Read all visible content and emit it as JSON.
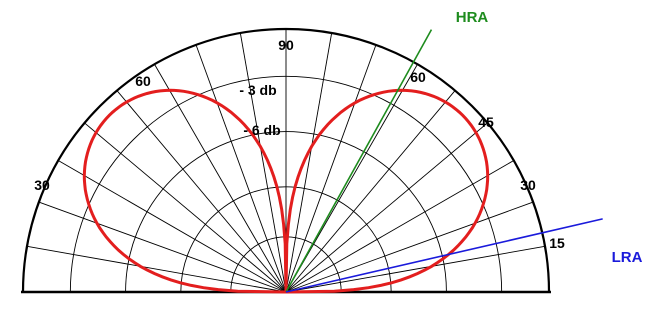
{
  "angle_labels": {
    "a90": "90",
    "left_60": "60",
    "left_30": "30",
    "right_60": "60",
    "right_45": "45",
    "right_30": "30",
    "right_15": "15"
  },
  "ring_labels": {
    "minus3": "- 3 db",
    "minus6": "- 6 db"
  },
  "rays": {
    "hra": {
      "label": "HRA",
      "color": "#1e8c1e",
      "angle_deg": 61
    },
    "lra": {
      "label": "LRA",
      "color": "#1a1adb",
      "angle_deg": 13
    }
  },
  "pattern": {
    "color": "#e31e1e",
    "lobe_peak_deg": 30,
    "lobe_width_exponent": 1.4
  },
  "grid": {
    "radial_step_deg": 10,
    "ring_fractions": [
      1,
      0.82,
      0.61,
      0.4,
      0.21
    ]
  }
}
